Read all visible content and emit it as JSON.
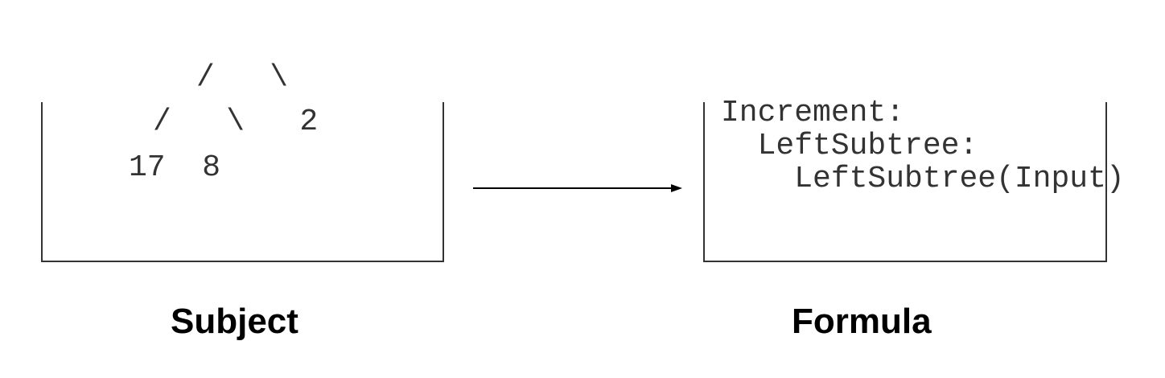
{
  "subject": {
    "tree_lines": [
      "/   \\",
      "/   \\   2",
      "17  8"
    ],
    "label": "Subject"
  },
  "formula": {
    "lines": [
      "Increment:",
      "  LeftSubtree:",
      "    LeftSubtree(Input)"
    ],
    "label": "Formula"
  }
}
